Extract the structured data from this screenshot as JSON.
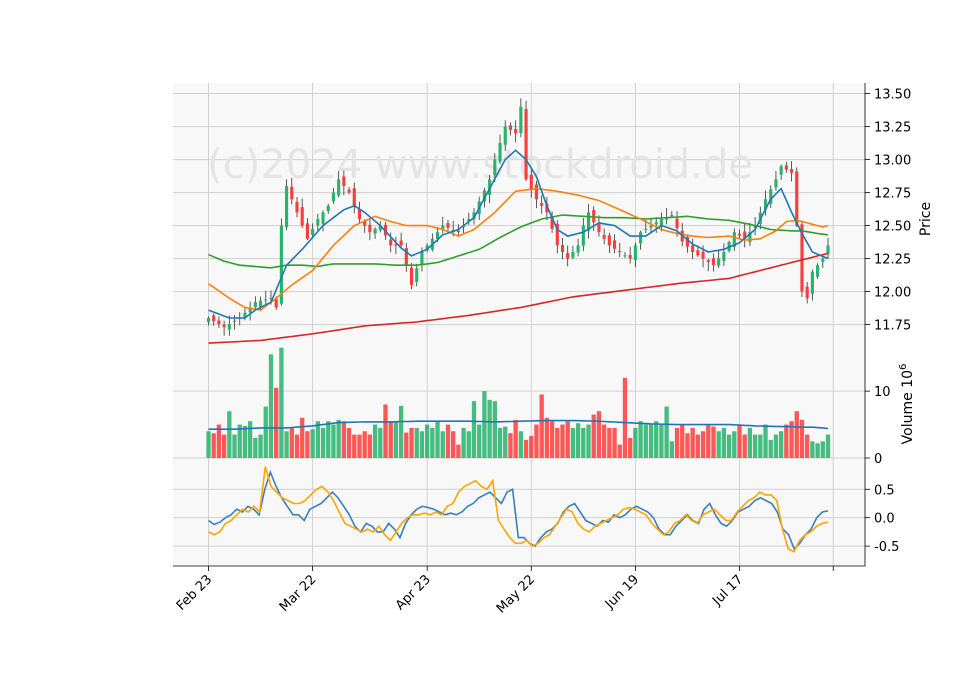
{
  "watermark": "(c)2024 www.stockdroid.de",
  "colors": {
    "up": "#26b36b",
    "down": "#ff3b3b",
    "ma_short": "#1f77b4",
    "ma_mid": "#ff7f0e",
    "ma_long": "#2ca02c",
    "ma_200": "#d62728",
    "osc_a": "#3a7fc0",
    "osc_b": "#ffa500",
    "panel_bg": "#f8f8f8",
    "grid": "#d0d0d0"
  },
  "chart_data": [
    {
      "type": "candlestick",
      "panel": "price",
      "ylabel": "Price",
      "ylim": [
        11.55,
        13.58
      ],
      "y_ticks": [
        "11.75",
        "12.00",
        "12.25",
        "12.50",
        "12.75",
        "13.00",
        "13.25",
        "13.50"
      ],
      "x_ticks": [
        "Feb 23",
        "Mar 22",
        "Apr 23",
        "May 22",
        "Jun 19",
        "Jul 17",
        ""
      ],
      "bar_count": 120,
      "grid": true,
      "anchors": {
        "close": [
          [
            0,
            11.8
          ],
          [
            3,
            11.73
          ],
          [
            6,
            11.8
          ],
          [
            9,
            11.92
          ],
          [
            12,
            11.95
          ],
          [
            13,
            11.88
          ],
          [
            14,
            12.5
          ],
          [
            15,
            12.8
          ],
          [
            17,
            12.6
          ],
          [
            19,
            12.4
          ],
          [
            21,
            12.55
          ],
          [
            23,
            12.65
          ],
          [
            25,
            12.85
          ],
          [
            27,
            12.75
          ],
          [
            29,
            12.55
          ],
          [
            31,
            12.45
          ],
          [
            33,
            12.5
          ],
          [
            35,
            12.35
          ],
          [
            37,
            12.35
          ],
          [
            39,
            12.05
          ],
          [
            41,
            12.3
          ],
          [
            43,
            12.4
          ],
          [
            45,
            12.5
          ],
          [
            48,
            12.45
          ],
          [
            51,
            12.6
          ],
          [
            54,
            12.85
          ],
          [
            55,
            13.0
          ],
          [
            57,
            13.25
          ],
          [
            59,
            13.2
          ],
          [
            60,
            13.4
          ],
          [
            61,
            12.85
          ],
          [
            63,
            12.7
          ],
          [
            65,
            12.6
          ],
          [
            67,
            12.35
          ],
          [
            69,
            12.25
          ],
          [
            71,
            12.35
          ],
          [
            72,
            12.5
          ],
          [
            73,
            12.6
          ],
          [
            75,
            12.45
          ],
          [
            77,
            12.35
          ],
          [
            79,
            12.3
          ],
          [
            81,
            12.25
          ],
          [
            83,
            12.45
          ],
          [
            85,
            12.5
          ],
          [
            87,
            12.55
          ],
          [
            89,
            12.58
          ],
          [
            91,
            12.38
          ],
          [
            93,
            12.3
          ],
          [
            95,
            12.25
          ],
          [
            97,
            12.2
          ],
          [
            99,
            12.3
          ],
          [
            101,
            12.45
          ],
          [
            103,
            12.4
          ],
          [
            105,
            12.5
          ],
          [
            107,
            12.7
          ],
          [
            109,
            12.85
          ],
          [
            110,
            12.95
          ],
          [
            112,
            12.9
          ],
          [
            113,
            12.5
          ],
          [
            114,
            12.0
          ],
          [
            115,
            11.95
          ],
          [
            116,
            12.15
          ],
          [
            118,
            12.25
          ],
          [
            119,
            12.35
          ]
        ],
        "sma_short": [
          [
            0,
            11.86
          ],
          [
            4,
            11.8
          ],
          [
            7,
            11.8
          ],
          [
            9,
            11.86
          ],
          [
            12,
            11.92
          ],
          [
            15,
            12.2
          ],
          [
            18,
            12.32
          ],
          [
            22,
            12.5
          ],
          [
            26,
            12.62
          ],
          [
            28,
            12.65
          ],
          [
            30,
            12.6
          ],
          [
            33,
            12.5
          ],
          [
            37,
            12.33
          ],
          [
            39,
            12.27
          ],
          [
            42,
            12.32
          ],
          [
            45,
            12.43
          ],
          [
            48,
            12.47
          ],
          [
            51,
            12.56
          ],
          [
            54,
            12.78
          ],
          [
            57,
            13.0
          ],
          [
            59,
            13.07
          ],
          [
            61,
            13.0
          ],
          [
            63,
            12.87
          ],
          [
            65,
            12.65
          ],
          [
            67,
            12.47
          ],
          [
            69,
            12.42
          ],
          [
            72,
            12.45
          ],
          [
            75,
            12.52
          ],
          [
            78,
            12.5
          ],
          [
            81,
            12.42
          ],
          [
            84,
            12.42
          ],
          [
            87,
            12.5
          ],
          [
            90,
            12.46
          ],
          [
            93,
            12.36
          ],
          [
            96,
            12.3
          ],
          [
            99,
            12.32
          ],
          [
            102,
            12.37
          ],
          [
            105,
            12.47
          ],
          [
            108,
            12.7
          ],
          [
            110,
            12.78
          ],
          [
            112,
            12.6
          ],
          [
            114,
            12.44
          ],
          [
            116,
            12.3
          ],
          [
            119,
            12.25
          ]
        ],
        "sma_mid": [
          [
            0,
            12.06
          ],
          [
            4,
            11.95
          ],
          [
            7,
            11.88
          ],
          [
            10,
            11.86
          ],
          [
            13,
            11.95
          ],
          [
            16,
            12.05
          ],
          [
            20,
            12.16
          ],
          [
            24,
            12.35
          ],
          [
            28,
            12.5
          ],
          [
            32,
            12.57
          ],
          [
            35,
            12.53
          ],
          [
            38,
            12.5
          ],
          [
            42,
            12.5
          ],
          [
            45,
            12.47
          ],
          [
            48,
            12.42
          ],
          [
            51,
            12.47
          ],
          [
            55,
            12.6
          ],
          [
            59,
            12.76
          ],
          [
            63,
            12.78
          ],
          [
            67,
            12.76
          ],
          [
            71,
            12.73
          ],
          [
            75,
            12.69
          ],
          [
            79,
            12.62
          ],
          [
            83,
            12.55
          ],
          [
            87,
            12.47
          ],
          [
            90,
            12.44
          ],
          [
            93,
            12.42
          ],
          [
            96,
            12.41
          ],
          [
            100,
            12.42
          ],
          [
            103,
            12.39
          ],
          [
            106,
            12.4
          ],
          [
            109,
            12.46
          ],
          [
            111,
            12.53
          ],
          [
            113,
            12.54
          ],
          [
            116,
            12.51
          ],
          [
            118,
            12.49
          ],
          [
            119,
            12.5
          ]
        ],
        "sma_long": [
          [
            0,
            12.28
          ],
          [
            3,
            12.23
          ],
          [
            6,
            12.2
          ],
          [
            9,
            12.19
          ],
          [
            12,
            12.18
          ],
          [
            15,
            12.2
          ],
          [
            18,
            12.2
          ],
          [
            21,
            12.19
          ],
          [
            24,
            12.21
          ],
          [
            28,
            12.21
          ],
          [
            32,
            12.21
          ],
          [
            36,
            12.2
          ],
          [
            40,
            12.2
          ],
          [
            44,
            12.22
          ],
          [
            48,
            12.27
          ],
          [
            52,
            12.32
          ],
          [
            56,
            12.41
          ],
          [
            60,
            12.49
          ],
          [
            64,
            12.55
          ],
          [
            68,
            12.58
          ],
          [
            72,
            12.57
          ],
          [
            76,
            12.56
          ],
          [
            80,
            12.56
          ],
          [
            84,
            12.55
          ],
          [
            88,
            12.56
          ],
          [
            92,
            12.57
          ],
          [
            96,
            12.55
          ],
          [
            100,
            12.54
          ],
          [
            104,
            12.51
          ],
          [
            108,
            12.47
          ],
          [
            112,
            12.46
          ],
          [
            114,
            12.46
          ],
          [
            117,
            12.44
          ],
          [
            119,
            12.43
          ]
        ],
        "sma_200": [
          [
            0,
            11.61
          ],
          [
            10,
            11.63
          ],
          [
            20,
            11.68
          ],
          [
            30,
            11.74
          ],
          [
            40,
            11.77
          ],
          [
            50,
            11.82
          ],
          [
            60,
            11.88
          ],
          [
            70,
            11.96
          ],
          [
            80,
            12.01
          ],
          [
            90,
            12.06
          ],
          [
            100,
            12.1
          ],
          [
            110,
            12.2
          ],
          [
            119,
            12.29
          ]
        ]
      }
    },
    {
      "type": "bar",
      "panel": "volume",
      "ylabel": "Volume  10^6",
      "ylabel_main": "Volume",
      "ylabel_exp": "6",
      "ylim": [
        0,
        16
      ],
      "y_ticks": [
        "0",
        "10"
      ],
      "values_millions": [
        4,
        3.7,
        5,
        3.5,
        7,
        3.5,
        5,
        4.8,
        5.5,
        3,
        3.5,
        7.7,
        15.5,
        10.5,
        16.5,
        4,
        4.5,
        3.5,
        6,
        4,
        4.3,
        5.5,
        4.5,
        5.5,
        5,
        5.7,
        5.5,
        4.5,
        3.5,
        3.5,
        4,
        3.5,
        5,
        4.5,
        8,
        5.5,
        5.5,
        7.8,
        3.8,
        4.5,
        4.5,
        4,
        5,
        4.5,
        5.5,
        4,
        5,
        4,
        2,
        4.5,
        4,
        8.5,
        5,
        10,
        8.7,
        8.5,
        4.5,
        4.7,
        3.7,
        5.7,
        4,
        2.7,
        3.3,
        5,
        9.5,
        6,
        5.5,
        4.5,
        5,
        5.5,
        4.5,
        5.2,
        4.5,
        5,
        6.5,
        7,
        5,
        4.5,
        4.5,
        2,
        12,
        3,
        4.5,
        5.5,
        5,
        5,
        5.5,
        5,
        7.7,
        2.5,
        4.5,
        5,
        3.7,
        4.5,
        3.5,
        4,
        5,
        4.7,
        4,
        4.5,
        3.5,
        4,
        5,
        3.5,
        4.5,
        3.5,
        3.5,
        5,
        2.7,
        3.5,
        4,
        5,
        5.5,
        7,
        5.7,
        3.5,
        2.5,
        2.2,
        2.5,
        3.5
      ],
      "avg_millions": [
        4.3,
        4.3,
        4.5,
        4.5,
        4.8,
        5.3,
        5.4,
        5.4,
        5.5,
        5.5,
        5.5,
        5.4,
        5.5,
        5.6,
        5.6,
        5.5,
        5.3,
        5.1,
        5.0,
        5.0,
        5.0,
        4.8,
        4.7,
        4.7,
        4.6,
        4.6,
        4.6,
        4.5,
        4.4
      ],
      "avg_x": [
        0,
        5,
        10,
        15,
        20,
        25,
        30,
        35,
        40,
        45,
        50,
        55,
        60,
        65,
        70,
        75,
        80,
        85,
        90,
        95,
        100,
        105,
        110,
        112,
        114,
        115,
        116,
        118,
        119
      ]
    },
    {
      "type": "line",
      "panel": "oscillator",
      "ylim": [
        -0.85,
        1.05
      ],
      "y_ticks": [
        "-0.5",
        "0.0",
        "0.5"
      ],
      "series": [
        {
          "values": [
            -0.05,
            -0.12,
            -0.08,
            0,
            0.05,
            0.15,
            0.1,
            0.2,
            0.15,
            0.05,
            0.5,
            0.8,
            0.55,
            0.35,
            0.2,
            0.05,
            0.05,
            -0.05,
            0.15,
            0.2,
            0.25,
            0.35,
            0.45,
            0.35,
            0.2,
            0.05,
            -0.15,
            -0.25,
            -0.1,
            -0.15,
            -0.25,
            -0.25,
            -0.1,
            -0.2,
            -0.35,
            -0.1,
            0.05,
            0.15,
            0.2,
            0.18,
            0.15,
            0.1,
            0.05,
            0.08,
            0.05,
            0.1,
            0.2,
            0.25,
            0.35,
            0.4,
            0.45,
            0.35,
            0.25,
            0.45,
            0.5,
            -0.35,
            -0.35,
            -0.45,
            -0.5,
            -0.35,
            -0.25,
            -0.2,
            -0.1,
            0.1,
            0.2,
            0.25,
            0.1,
            -0.05,
            -0.1,
            -0.15,
            -0.05,
            -0.08,
            0.05,
            0,
            0.05,
            0.15,
            0.2,
            0.15,
            0.1,
            0,
            -0.2,
            -0.3,
            -0.3,
            -0.15,
            -0.05,
            0.05,
            -0.05,
            -0.1,
            0.15,
            0.25,
            0.05,
            -0.1,
            -0.15,
            -0.05,
            0.1,
            0.15,
            0.2,
            0.3,
            0.35,
            0.3,
            0.25,
            0.1,
            -0.2,
            -0.3,
            -0.55,
            -0.45,
            -0.3,
            -0.2,
            0,
            0.1,
            0.12
          ]
        },
        {
          "values": [
            -0.25,
            -0.3,
            -0.25,
            -0.1,
            -0.05,
            0.05,
            0.15,
            0.1,
            0.2,
            0.1,
            0.9,
            0.55,
            0.45,
            0.35,
            0.3,
            0.25,
            0.25,
            0.3,
            0.4,
            0.5,
            0.55,
            0.45,
            0.3,
            0.1,
            -0.1,
            -0.15,
            -0.2,
            -0.25,
            -0.2,
            -0.25,
            -0.15,
            -0.3,
            -0.4,
            -0.25,
            -0.1,
            0,
            0.05,
            0.05,
            0.08,
            0.05,
            0.1,
            0.05,
            0.2,
            0.25,
            0.45,
            0.55,
            0.6,
            0.65,
            0.55,
            0.5,
            0.65,
            -0.05,
            -0.2,
            -0.35,
            -0.45,
            -0.45,
            -0.4,
            -0.5,
            -0.45,
            -0.35,
            -0.3,
            -0.15,
            0,
            0.15,
            0.1,
            -0.1,
            -0.2,
            -0.25,
            -0.15,
            -0.1,
            -0.05,
            0,
            0.05,
            0.15,
            0.18,
            0.15,
            0.1,
            0.05,
            -0.1,
            -0.2,
            -0.3,
            -0.25,
            -0.1,
            -0.05,
            0.05,
            -0.05,
            -0.1,
            0.05,
            0.1,
            0.15,
            0.05,
            -0.05,
            -0.05,
            0.1,
            0.2,
            0.3,
            0.35,
            0.45,
            0.4,
            0.4,
            0.3,
            -0.2,
            -0.55,
            -0.6,
            -0.4,
            -0.3,
            -0.25,
            -0.15,
            -0.1,
            -0.08
          ]
        }
      ]
    }
  ]
}
